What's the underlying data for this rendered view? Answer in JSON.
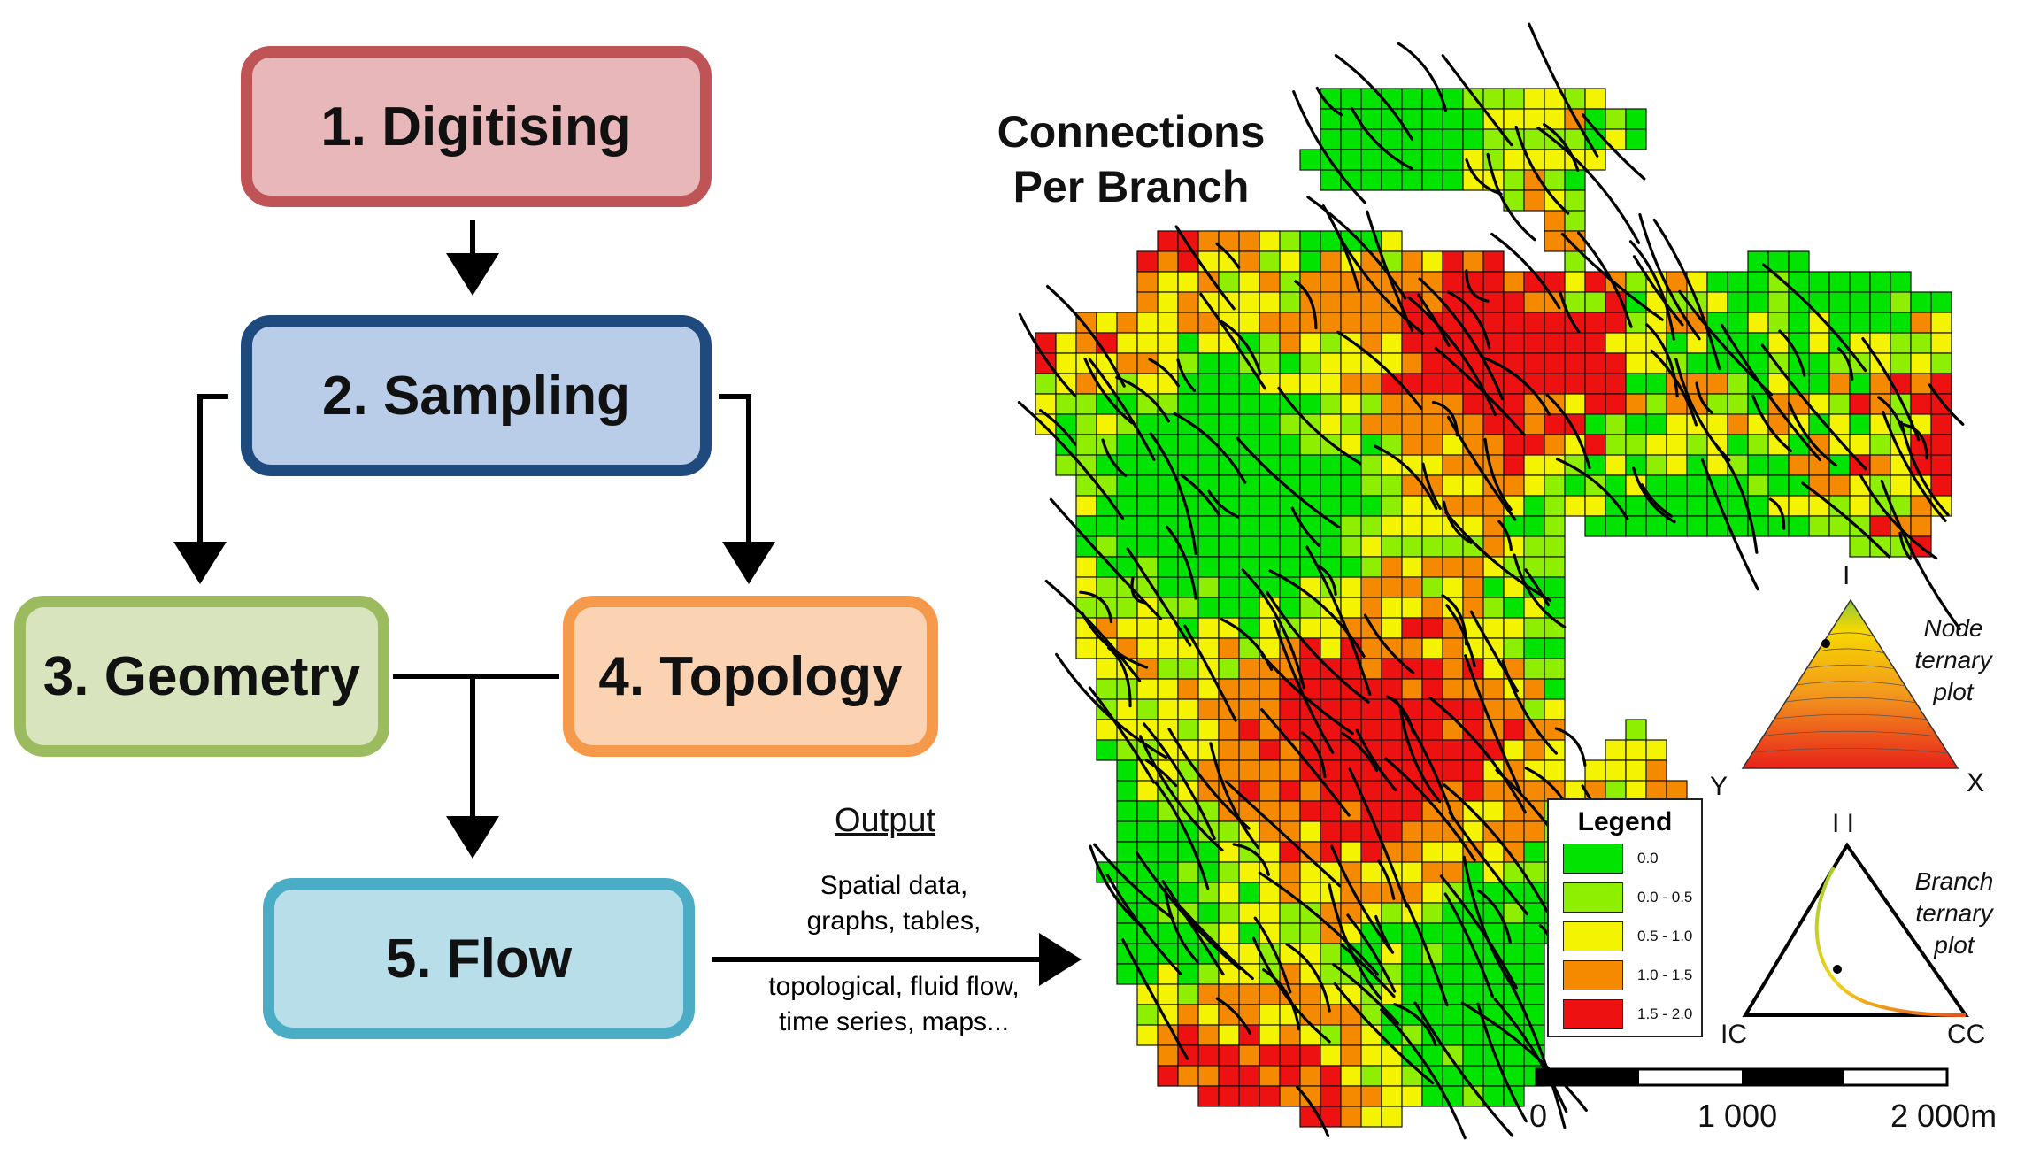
{
  "flowchart": {
    "steps": [
      {
        "id": "digitising",
        "label": "1. Digitising"
      },
      {
        "id": "sampling",
        "label": "2. Sampling"
      },
      {
        "id": "geometry",
        "label": "3. Geometry"
      },
      {
        "id": "topology",
        "label": "4. Topology"
      },
      {
        "id": "flow",
        "label": "5. Flow"
      }
    ],
    "output": {
      "heading": "Output",
      "lines": [
        "Spatial data,",
        "graphs, tables,",
        "topological, fluid flow,",
        "time series, maps..."
      ]
    }
  },
  "map": {
    "title_lines": [
      "Connections",
      "Per Branch"
    ],
    "legend": {
      "title": "Legend",
      "classes": [
        {
          "label": "0.0",
          "color": "#00e400"
        },
        {
          "label": "0.0 - 0.5",
          "color": "#8ef000"
        },
        {
          "label": "0.5 - 1.0",
          "color": "#f4f400"
        },
        {
          "label": "1.0 - 1.5",
          "color": "#f58a00"
        },
        {
          "label": "1.5 - 2.0",
          "color": "#ee1111"
        }
      ]
    },
    "scale_bar": {
      "labels": [
        "0",
        "1 000",
        "2 000m"
      ]
    }
  },
  "node_ternary": {
    "title_lines": [
      "Node",
      "ternary",
      "plot"
    ],
    "vertices": {
      "top": "I",
      "left": "Y",
      "right": "X"
    }
  },
  "branch_ternary": {
    "title_lines": [
      "Branch",
      "ternary",
      "plot"
    ],
    "vertices": {
      "top": "I I",
      "left": "IC",
      "right": "CC"
    }
  }
}
